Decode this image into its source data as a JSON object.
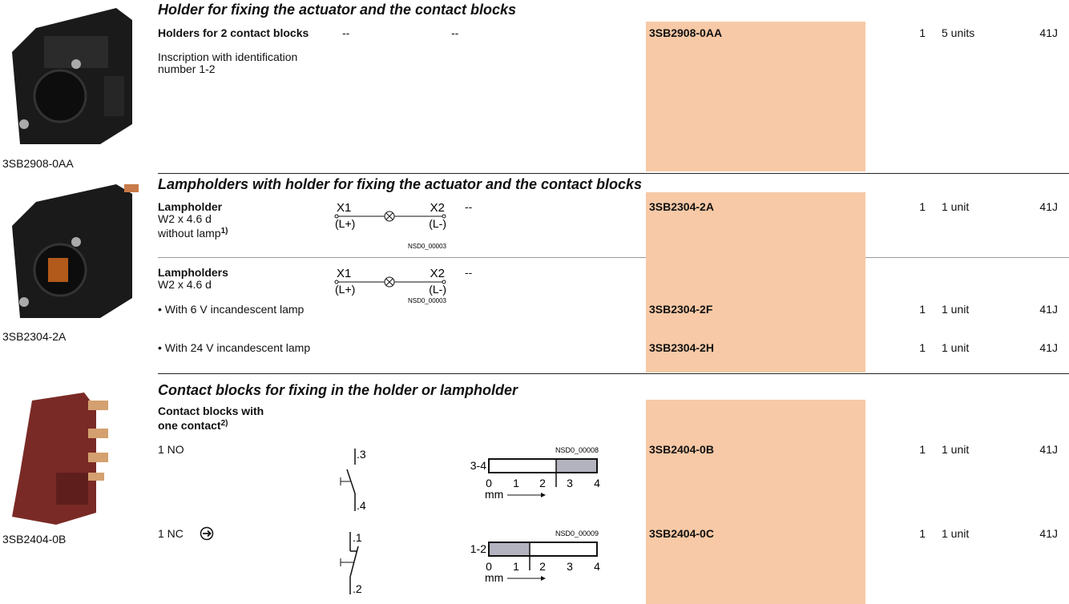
{
  "sections": [
    {
      "heading": "Holder for fixing the actuator and the contact blocks",
      "image_caption": "3SB2908-0AA",
      "rows": [
        {
          "title": "Holders for 2 contact blocks",
          "description": "Inscription with identification number 1-2",
          "symbol": "--",
          "diagram": "--",
          "order_no": "3SB2908-0AA",
          "pu": 1,
          "ps": "5 units",
          "pg": "41J"
        }
      ]
    },
    {
      "heading": "Lampholders with holder for fixing the actuator and the contact blocks",
      "image_caption": "3SB2304-2A",
      "rows": [
        {
          "title": "Lampholder",
          "description": "W2 x 4.6 d",
          "description_2": "without lamp",
          "footnote": "1)",
          "symbol": {
            "x1": "X1",
            "x2": "X2",
            "l1": "(L+)",
            "l2": "(L-)",
            "code": "NSD0_00003"
          },
          "diagram": "--",
          "order_no": "3SB2304-2A",
          "pu": 1,
          "ps": "1 unit",
          "pg": "41J"
        },
        {
          "title": "Lampholders",
          "description": "W2 x 4.6 d",
          "symbol": {
            "x1": "X1",
            "x2": "X2",
            "l1": "(L+)",
            "l2": "(L-)",
            "code": "NSD0_00003"
          },
          "diagram": "--",
          "variants": [
            {
              "text": "• With 6 V incandescent lamp",
              "order_no": "3SB2304-2F",
              "pu": 1,
              "ps": "1 unit",
              "pg": "41J"
            },
            {
              "text": "• With 24 V incandescent lamp",
              "order_no": "3SB2304-2H",
              "pu": 1,
              "ps": "1 unit",
              "pg": "41J"
            }
          ]
        }
      ]
    },
    {
      "heading": "Contact blocks for fixing in the holder or lampholder",
      "image_caption": "3SB2404-0B",
      "title": "Contact blocks with one contact",
      "footnote": "2)",
      "rows": [
        {
          "label": "1 NO",
          "symbol": {
            "top": ".3",
            "bottom": ".4"
          },
          "diagram": {
            "code": "NSD0_00008",
            "label": "3-4",
            "ticks": [
              0,
              1,
              2,
              3,
              4
            ],
            "unit": "mm"
          },
          "order_no": "3SB2404-0B",
          "pu": 1,
          "ps": "1 unit",
          "pg": "41J"
        },
        {
          "label": "1 NC",
          "symbol": {
            "top": ".1",
            "bottom": ".2"
          },
          "diagram": {
            "code": "NSD0_00009",
            "label": "1-2",
            "ticks": [
              0,
              1,
              2,
              3,
              4
            ],
            "unit": "mm"
          },
          "order_no": "3SB2404-0C",
          "pu": 1,
          "ps": "1 unit",
          "pg": "41J"
        }
      ]
    }
  ]
}
